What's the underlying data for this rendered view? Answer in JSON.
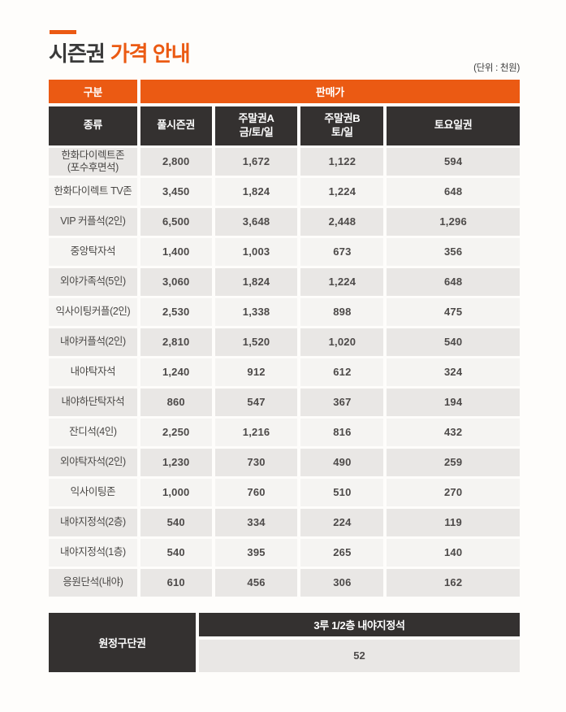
{
  "header": {
    "title_main": "시즌권",
    "title_accent": "가격 안내",
    "unit_note": "(단위 : 천원)"
  },
  "table": {
    "top_header": {
      "category": "구분",
      "sale_price": "판매가"
    },
    "columns": [
      "종류",
      "풀시즌권",
      "주말권A\n금/토/일",
      "주말권B\n토/일",
      "토요일권"
    ],
    "rows": [
      {
        "label": "한화다이렉트존\n(포수후면석)",
        "prices": [
          "2,800",
          "1,672",
          "1,122",
          "594"
        ]
      },
      {
        "label": "한화다이렉트 TV존",
        "prices": [
          "3,450",
          "1,824",
          "1,224",
          "648"
        ]
      },
      {
        "label": "VIP 커플석(2인)",
        "prices": [
          "6,500",
          "3,648",
          "2,448",
          "1,296"
        ]
      },
      {
        "label": "중앙탁자석",
        "prices": [
          "1,400",
          "1,003",
          "673",
          "356"
        ]
      },
      {
        "label": "외야가족석(5인)",
        "prices": [
          "3,060",
          "1,824",
          "1,224",
          "648"
        ]
      },
      {
        "label": "익사이팅커플(2인)",
        "prices": [
          "2,530",
          "1,338",
          "898",
          "475"
        ]
      },
      {
        "label": "내야커플석(2인)",
        "prices": [
          "2,810",
          "1,520",
          "1,020",
          "540"
        ]
      },
      {
        "label": "내야탁자석",
        "prices": [
          "1,240",
          "912",
          "612",
          "324"
        ]
      },
      {
        "label": "내야하단탁자석",
        "prices": [
          "860",
          "547",
          "367",
          "194"
        ]
      },
      {
        "label": "잔디석(4인)",
        "prices": [
          "2,250",
          "1,216",
          "816",
          "432"
        ]
      },
      {
        "label": "외야탁자석(2인)",
        "prices": [
          "1,230",
          "730",
          "490",
          "259"
        ]
      },
      {
        "label": "익사이팅존",
        "prices": [
          "1,000",
          "760",
          "510",
          "270"
        ]
      },
      {
        "label": "내야지정석(2층)",
        "prices": [
          "540",
          "334",
          "224",
          "119"
        ]
      },
      {
        "label": "내야지정석(1층)",
        "prices": [
          "540",
          "395",
          "265",
          "140"
        ]
      },
      {
        "label": "응원단석(내야)",
        "prices": [
          "610",
          "456",
          "306",
          "162"
        ]
      }
    ]
  },
  "away_table": {
    "label": "원정구단권",
    "seat_header": "3루 1/2층 내야지정석",
    "price": "52"
  },
  "colors": {
    "accent": "#EB5A13",
    "header-dark": "#343130",
    "row-dark": "#E9E7E5",
    "row-light": "#F5F4F2",
    "price-text": "#4D4A49"
  }
}
